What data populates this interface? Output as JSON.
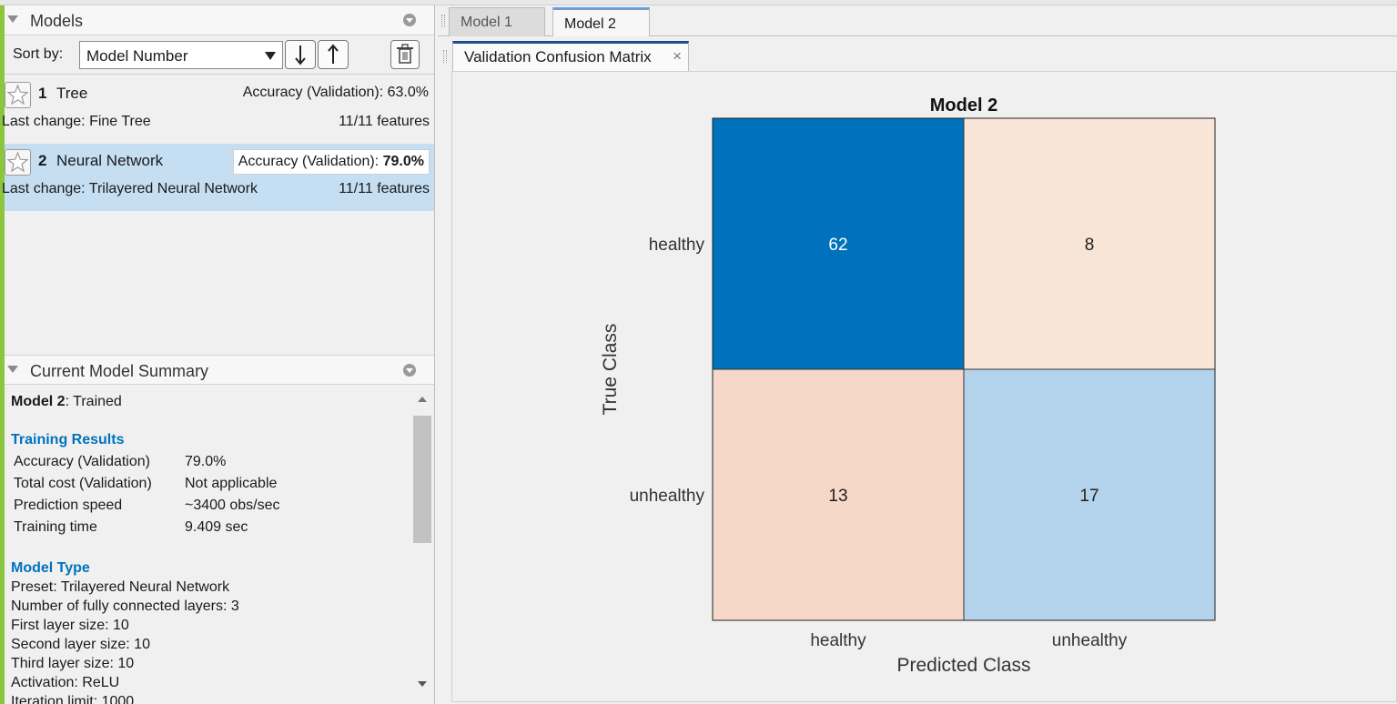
{
  "models_panel": {
    "title": "Models",
    "sort_label": "Sort by:",
    "sort_value": "Model Number",
    "models": [
      {
        "number": "1",
        "name": "Tree",
        "accuracy_label": "Accuracy (Validation): ",
        "accuracy": "63.0%",
        "last_change": "Last change: Fine Tree",
        "features": "11/11 features",
        "selected": false
      },
      {
        "number": "2",
        "name": "Neural Network",
        "accuracy_label": "Accuracy (Validation): ",
        "accuracy": "79.0%",
        "last_change": "Last change: Trilayered Neural Network",
        "features": "11/11 features",
        "selected": true
      }
    ]
  },
  "summary_panel": {
    "title": "Current Model Summary",
    "model_label": "Model 2",
    "status": ": Trained",
    "training_results_heading": "Training Results",
    "training_results": [
      {
        "key": "Accuracy (Validation)",
        "value": "79.0%"
      },
      {
        "key": "Total cost (Validation)",
        "value": "Not applicable"
      },
      {
        "key": "Prediction speed",
        "value": "~3400 obs/sec"
      },
      {
        "key": "Training time",
        "value": "9.409 sec"
      }
    ],
    "model_type_heading": "Model Type",
    "model_type_lines": [
      "Preset: Trilayered Neural Network",
      "Number of fully connected layers: 3",
      "First layer size: 10",
      "Second layer size: 10",
      "Third layer size: 10",
      "Activation: ReLU",
      "Iteration limit: 1000"
    ]
  },
  "tabs": {
    "model_tabs": [
      "Model 1",
      "Model 2"
    ],
    "active_model_tab": "Model 2",
    "plot_tab": "Validation Confusion Matrix",
    "close_glyph": "×"
  },
  "colors": {
    "accent_blue": "#0072bd",
    "selected_row": "#c5def2",
    "green_bar": "#8cc63f"
  },
  "chart_data": {
    "type": "heatmap",
    "title": "Model 2",
    "xlabel": "Predicted Class",
    "ylabel": "True Class",
    "row_labels": [
      "healthy",
      "unhealthy"
    ],
    "col_labels": [
      "healthy",
      "unhealthy"
    ],
    "values": [
      [
        62,
        8
      ],
      [
        13,
        17
      ]
    ],
    "cell_colors": [
      [
        "#0072bd",
        "#f9e4d8"
      ],
      [
        "#f6d7c8",
        "#b3d3ec"
      ]
    ],
    "cell_text_colors": [
      [
        "#ffffff",
        "#222222"
      ],
      [
        "#222222",
        "#222222"
      ]
    ]
  }
}
